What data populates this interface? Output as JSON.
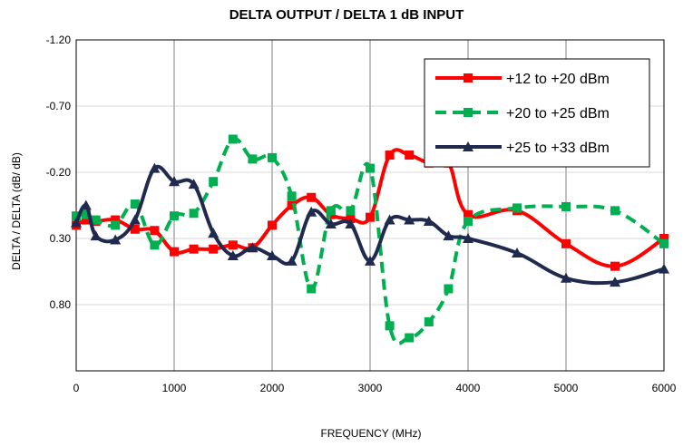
{
  "chart_data": {
    "type": "line",
    "title": "DELTA OUTPUT / DELTA 1 dB INPUT",
    "xlabel": "FREQUENCY (MHz)",
    "ylabel": "DELTA / DELTA (dB/ dB)",
    "xlim": [
      0,
      6000
    ],
    "ylim": [
      -1.2,
      1.3
    ],
    "y_inverted": true,
    "xticks": [
      0,
      1000,
      2000,
      3000,
      4000,
      5000,
      6000
    ],
    "xtick_labels": [
      "0",
      "1000",
      "2000",
      "3000",
      "4000",
      "5000",
      "6000"
    ],
    "yticks": [
      -1.2,
      -0.7,
      -0.2,
      0.3,
      0.8
    ],
    "ytick_labels": [
      "-1.20",
      "-0.70",
      "-0.20",
      "0.30",
      "0.80"
    ],
    "grid": "vertical",
    "legend_position": "top-right",
    "series": [
      {
        "name": "+12 to +20 dBm",
        "color": "#ff0000",
        "marker": "square",
        "dash": "solid",
        "x": [
          0,
          100,
          200,
          400,
          600,
          800,
          1000,
          1200,
          1400,
          1600,
          1800,
          2000,
          2200,
          2400,
          2600,
          2800,
          3000,
          3200,
          3400,
          3600,
          3800,
          4000,
          4500,
          5000,
          5500,
          6000
        ],
        "y": [
          0.2,
          0.16,
          0.17,
          0.16,
          0.23,
          0.24,
          0.4,
          0.38,
          0.38,
          0.35,
          0.37,
          0.2,
          0.05,
          -0.01,
          0.12,
          0.15,
          0.14,
          -0.33,
          -0.33,
          -0.27,
          -0.27,
          0.12,
          0.09,
          0.34,
          0.51,
          0.3
        ]
      },
      {
        "name": "+20 to +25 dBm",
        "color": "#00b050",
        "marker": "square",
        "dash": "dashed",
        "x": [
          0,
          100,
          200,
          400,
          600,
          800,
          1000,
          1200,
          1400,
          1600,
          1800,
          2000,
          2200,
          2400,
          2600,
          2800,
          3000,
          3200,
          3400,
          3600,
          3800,
          4000,
          4500,
          5000,
          5500,
          6000
        ],
        "y": [
          0.13,
          0.12,
          0.16,
          0.2,
          0.04,
          0.35,
          0.13,
          0.11,
          -0.13,
          -0.45,
          -0.3,
          -0.31,
          -0.02,
          0.68,
          0.09,
          0.09,
          -0.23,
          0.96,
          1.05,
          0.93,
          0.68,
          0.17,
          0.07,
          0.06,
          0.09,
          0.34
        ]
      },
      {
        "name": "+25 to +33 dBm",
        "color": "#1f2a4e",
        "marker": "triangle",
        "dash": "solid",
        "x": [
          0,
          100,
          200,
          400,
          600,
          800,
          1000,
          1200,
          1400,
          1600,
          1800,
          2000,
          2200,
          2400,
          2600,
          2800,
          3000,
          3200,
          3400,
          3600,
          3800,
          4000,
          4500,
          5000,
          5500,
          6000
        ],
        "y": [
          0.18,
          0.05,
          0.28,
          0.31,
          0.16,
          -0.23,
          -0.13,
          -0.11,
          0.26,
          0.43,
          0.37,
          0.43,
          0.47,
          0.1,
          0.19,
          0.19,
          0.47,
          0.16,
          0.16,
          0.17,
          0.28,
          0.3,
          0.41,
          0.6,
          0.63,
          0.53
        ]
      }
    ]
  }
}
